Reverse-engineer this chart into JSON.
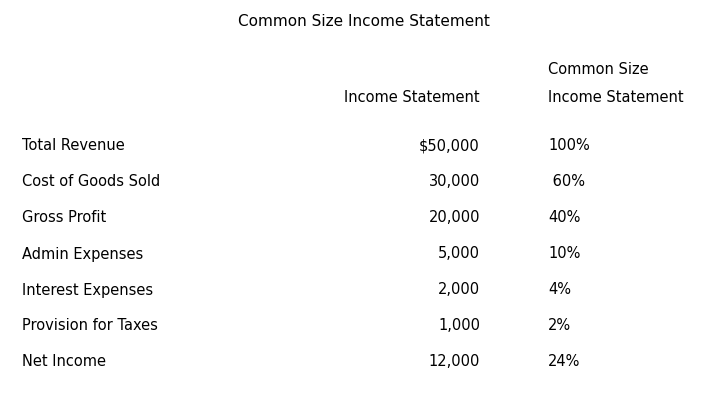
{
  "title": "Common Size Income Statement",
  "col3_header_line1": "Common Size",
  "col2_header_line2": "Income Statement",
  "col3_header_line2": "Income Statement",
  "rows": [
    {
      "label": "Total Revenue",
      "col2": "$50,000",
      "col3": "100%"
    },
    {
      "label": "Cost of Goods Sold",
      "col2": "30,000",
      "col3": " 60%"
    },
    {
      "label": "Gross Profit",
      "col2": "20,000",
      "col3": "40%"
    },
    {
      "label": "Admin Expenses",
      "col2": "5,000",
      "col3": "10%"
    },
    {
      "label": "Interest Expenses",
      "col2": "2,000",
      "col3": "4%"
    },
    {
      "label": "Provision for Taxes",
      "col2": "1,000",
      "col3": "2%"
    },
    {
      "label": "Net Income",
      "col2": "12,000",
      "col3": "24%"
    }
  ],
  "bg_color": "#ffffff",
  "text_color": "#000000",
  "font_size": 10.5,
  "title_font_size": 11
}
